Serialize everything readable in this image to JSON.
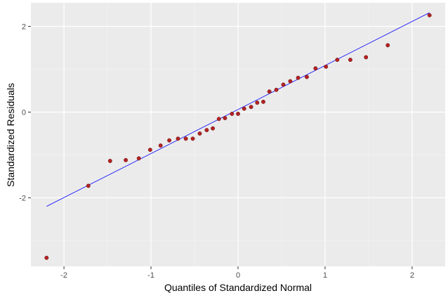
{
  "chart_data": {
    "type": "scatter",
    "title": "",
    "xlabel": "Quantiles of Standardized Normal",
    "ylabel": "Standardized Residuals",
    "xlim": [
      -2.38,
      2.38
    ],
    "ylim": [
      -3.6,
      2.55
    ],
    "x_ticks": [
      -2,
      -1,
      0,
      1,
      2
    ],
    "y_ticks": [
      -2,
      0,
      2
    ],
    "x_tick_labels": [
      "-2",
      "-1",
      "0",
      "1",
      "2"
    ],
    "y_tick_labels": [
      "-2",
      "0",
      "2"
    ],
    "grid": true,
    "background_color": "#ebebeb",
    "point_color": "#b22222",
    "line_color": "#0000ff",
    "reference_line": {
      "x": [
        -2.2,
        2.2
      ],
      "y": [
        -2.2,
        2.32
      ]
    },
    "points": {
      "x": [
        -2.2,
        -1.72,
        -1.47,
        -1.29,
        -1.14,
        -1.01,
        -0.89,
        -0.79,
        -0.69,
        -0.6,
        -0.52,
        -0.44,
        -0.36,
        -0.29,
        -0.22,
        -0.15,
        -0.07,
        0.0,
        0.07,
        0.15,
        0.22,
        0.29,
        0.36,
        0.44,
        0.52,
        0.6,
        0.69,
        0.79,
        0.89,
        1.01,
        1.14,
        1.29,
        1.47,
        1.72,
        2.2
      ],
      "y": [
        -3.4,
        -1.72,
        -1.14,
        -1.12,
        -1.08,
        -0.88,
        -0.78,
        -0.66,
        -0.62,
        -0.62,
        -0.62,
        -0.5,
        -0.42,
        -0.38,
        -0.16,
        -0.14,
        -0.04,
        -0.04,
        0.08,
        0.12,
        0.22,
        0.24,
        0.48,
        0.52,
        0.64,
        0.72,
        0.8,
        0.82,
        1.02,
        1.06,
        1.22,
        1.22,
        1.28,
        1.56,
        2.26
      ]
    }
  }
}
